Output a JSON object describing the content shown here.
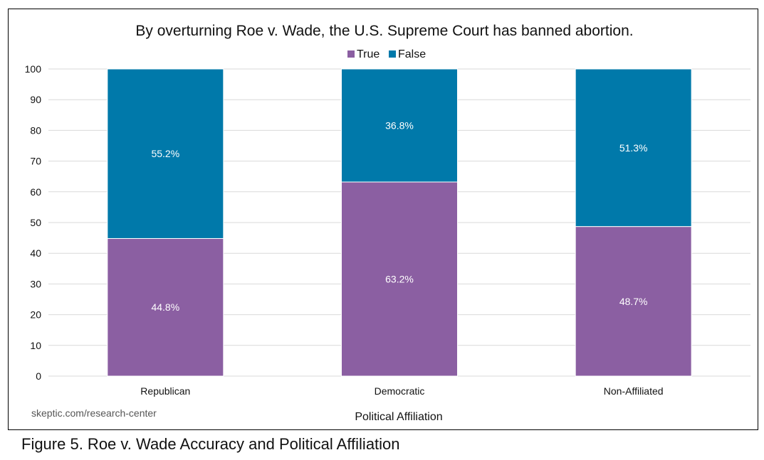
{
  "chart_data": {
    "type": "bar",
    "stacked": true,
    "title": "By overturning Roe v. Wade, the U.S. Supreme Court has banned abortion.",
    "categories": [
      "Republican",
      "Democratic",
      "Non-Affiliated"
    ],
    "series": [
      {
        "name": "True",
        "color": "#8b5fa2",
        "values": [
          44.8,
          63.2,
          48.7
        ],
        "labels": [
          "44.8%",
          "63.2%",
          "48.7%"
        ]
      },
      {
        "name": "False",
        "color": "#0079aa",
        "values": [
          55.2,
          36.8,
          51.3
        ],
        "labels": [
          "55.2%",
          "36.8%",
          "51.3%"
        ]
      }
    ],
    "xlabel": "Political Affiliation",
    "ylabel": "",
    "ylim": [
      0,
      100
    ],
    "yticks": [
      0,
      10,
      20,
      30,
      40,
      50,
      60,
      70,
      80,
      90,
      100
    ],
    "grid": true,
    "legend_position": "top-center"
  },
  "source_text": "skeptic.com/research-center",
  "caption": "Figure 5. Roe v. Wade Accuracy and Political Affiliation"
}
